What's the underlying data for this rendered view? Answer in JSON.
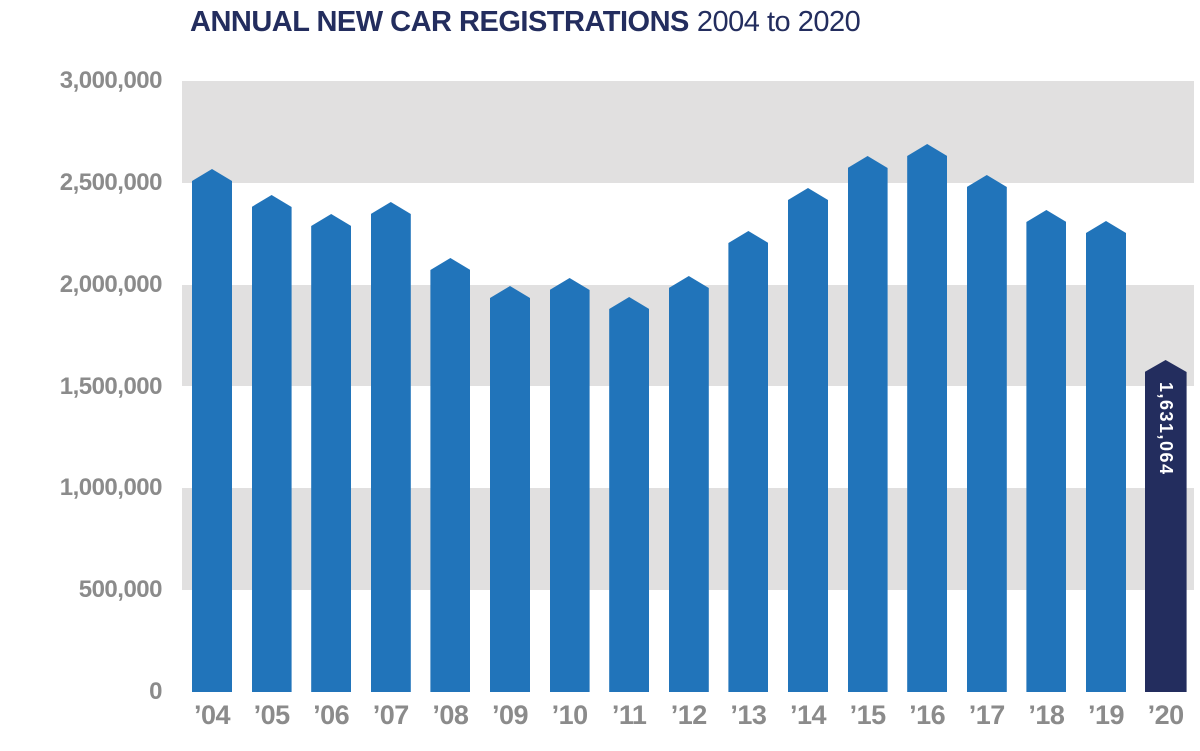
{
  "title": {
    "main": "ANNUAL NEW CAR REGISTRATIONS",
    "range": "2004 to 2020"
  },
  "colors": {
    "background": "#FFFFFF",
    "title_navy": "#232D5E",
    "bar_blue": "#2174BA",
    "bar_highlight_navy": "#232D5E",
    "band_gray": "#E1E0E0",
    "axis_label_gray": "#8B8B8B",
    "highlight_value_text": "#FFFFFF"
  },
  "y_axis": {
    "tick_labels": [
      "3,000,000",
      "2,500,000",
      "2,000,000",
      "1,500,000",
      "1,000,000",
      "500,000",
      "0"
    ]
  },
  "chart_data": {
    "type": "bar",
    "title": "ANNUAL NEW CAR REGISTRATIONS 2004 to 2020",
    "categories": [
      "’04",
      "’05",
      "’06",
      "’07",
      "’08",
      "’09",
      "’10",
      "’11",
      "’12",
      "’13",
      "’14",
      "’15",
      "’16",
      "’17",
      "’18",
      "’19",
      "’20"
    ],
    "values": [
      2567269,
      2439717,
      2344864,
      2404007,
      2131795,
      1994999,
      2030846,
      1941253,
      2044609,
      2264737,
      2476435,
      2633503,
      2692786,
      2540617,
      2367147,
      2311140,
      1631064
    ],
    "highlight_index": 16,
    "value_label_on_chart": {
      "index": 16,
      "text": "1,631,064"
    },
    "xlabel": "",
    "ylabel": "",
    "ylim": [
      0,
      3000000
    ],
    "ytick_interval": 500000,
    "legend": "none",
    "grid": "alternating horizontal 500k bands, gray topmost, no axis lines",
    "bar_top_shape": "pointed pentagon apex"
  }
}
